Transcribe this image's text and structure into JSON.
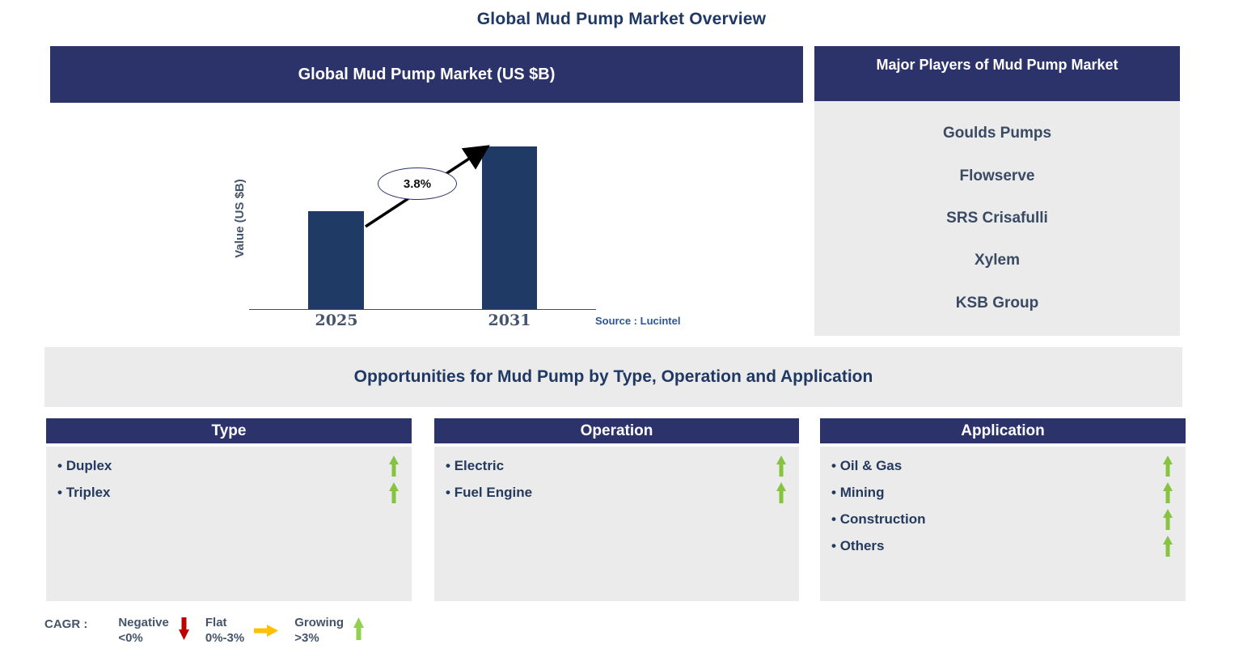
{
  "page_title": "Global Mud Pump Market Overview",
  "chart_panel": {
    "header": "Global Mud Pump Market (US $B)",
    "source": "Source : Lucintel"
  },
  "chart_data": {
    "type": "bar",
    "title": "Global Mud Pump Market (US $B)",
    "categories": [
      "2025",
      "2031"
    ],
    "values_relative": [
      0.6,
      1.0
    ],
    "annotation": "3.8%",
    "ylabel": "Value (US $B)",
    "xlabel": "",
    "y_axis_numeric_scale_shown": false,
    "legend_position": "none",
    "grid": false
  },
  "players_panel": {
    "header": "Major Players of Mud Pump Market",
    "players": [
      "Goulds Pumps",
      "Flowserve",
      "SRS Crisafulli",
      "Xylem",
      "KSB Group"
    ]
  },
  "opportunities": {
    "title": "Opportunities for Mud Pump by Type, Operation and Application",
    "columns": [
      {
        "header": "Type",
        "items": [
          {
            "label": "Duplex",
            "trend": "growing"
          },
          {
            "label": "Triplex",
            "trend": "growing"
          }
        ]
      },
      {
        "header": "Operation",
        "items": [
          {
            "label": "Electric",
            "trend": "growing"
          },
          {
            "label": "Fuel Engine",
            "trend": "growing"
          }
        ]
      },
      {
        "header": "Application",
        "items": [
          {
            "label": "Oil & Gas",
            "trend": "growing"
          },
          {
            "label": "Mining",
            "trend": "growing"
          },
          {
            "label": "Construction",
            "trend": "growing"
          },
          {
            "label": "Others",
            "trend": "growing"
          }
        ]
      }
    ]
  },
  "legend": {
    "prefix": "CAGR :",
    "entries": [
      {
        "name": "Negative",
        "range": "<0%",
        "direction": "down",
        "color": "#C00000"
      },
      {
        "name": "Flat",
        "range": "0%-3%",
        "direction": "right",
        "color": "#FFC000"
      },
      {
        "name": "Growing",
        "range": ">3%",
        "direction": "up",
        "color": "#92D050"
      }
    ]
  },
  "colors": {
    "navy_header": "#2C336A",
    "bar": "#1F3A64",
    "panel_grey": "#EBEBEB",
    "title_text": "#1F3864",
    "item_text": "#243A5E",
    "players_text": "#3A4A63",
    "axis_text": "#44546A",
    "source_text": "#2F5496",
    "growth_arrow": "#86C440"
  }
}
